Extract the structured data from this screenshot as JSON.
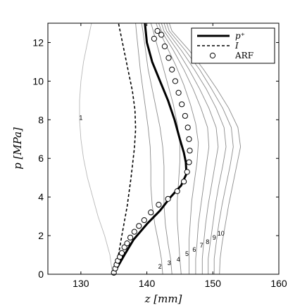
{
  "chart_data": {
    "type": "line",
    "xlabel": "z [mm]",
    "ylabel": "p [MPa]",
    "xlim": [
      125,
      160
    ],
    "ylim": [
      0,
      13
    ],
    "xticks": [
      130,
      140,
      150,
      160
    ],
    "yticks": [
      0,
      2,
      4,
      6,
      8,
      10,
      12
    ],
    "grid": false,
    "legend_position": "top-right",
    "series": [
      {
        "name": "p⁺",
        "style": "solid-thick",
        "color": "#000000",
        "points": [
          [
            135.0,
            0.0
          ],
          [
            135.6,
            0.4
          ],
          [
            136.6,
            1.0
          ],
          [
            138.0,
            1.8
          ],
          [
            140.0,
            2.6
          ],
          [
            142.0,
            3.3
          ],
          [
            143.6,
            4.0
          ],
          [
            145.2,
            4.6
          ],
          [
            146.0,
            5.2
          ],
          [
            145.9,
            5.8
          ],
          [
            145.6,
            6.3
          ],
          [
            145.0,
            7.0
          ],
          [
            144.2,
            8.0
          ],
          [
            143.2,
            9.0
          ],
          [
            142.0,
            10.0
          ],
          [
            140.8,
            11.0
          ],
          [
            140.0,
            12.0
          ],
          [
            139.7,
            13.0
          ]
        ]
      },
      {
        "name": "I",
        "style": "dashed",
        "color": "#000000",
        "points": [
          [
            135.0,
            0.0
          ],
          [
            135.6,
            0.8
          ],
          [
            136.2,
            2.0
          ],
          [
            137.0,
            3.5
          ],
          [
            137.6,
            5.0
          ],
          [
            138.1,
            6.5
          ],
          [
            138.3,
            7.5
          ],
          [
            138.2,
            8.5
          ],
          [
            137.8,
            9.5
          ],
          [
            137.2,
            10.5
          ],
          [
            136.6,
            11.5
          ],
          [
            136.0,
            12.5
          ],
          [
            135.7,
            13.0
          ]
        ]
      },
      {
        "name": "ARF",
        "style": "markers",
        "color": "#000000",
        "points": [
          [
            135.0,
            0.08
          ],
          [
            135.2,
            0.3
          ],
          [
            135.4,
            0.5
          ],
          [
            135.6,
            0.7
          ],
          [
            135.9,
            0.9
          ],
          [
            136.2,
            1.1
          ],
          [
            136.6,
            1.4
          ],
          [
            137.0,
            1.6
          ],
          [
            137.5,
            1.9
          ],
          [
            138.1,
            2.2
          ],
          [
            138.8,
            2.5
          ],
          [
            139.6,
            2.8
          ],
          [
            140.6,
            3.2
          ],
          [
            141.8,
            3.6
          ],
          [
            143.2,
            3.9
          ],
          [
            144.6,
            4.3
          ],
          [
            145.6,
            4.8
          ],
          [
            146.1,
            5.3
          ],
          [
            146.4,
            5.8
          ],
          [
            146.5,
            6.4
          ],
          [
            146.4,
            7.0
          ],
          [
            146.2,
            7.6
          ],
          [
            145.8,
            8.2
          ],
          [
            145.3,
            8.8
          ],
          [
            144.8,
            9.4
          ],
          [
            144.3,
            10.0
          ],
          [
            143.8,
            10.6
          ],
          [
            143.3,
            11.2
          ],
          [
            142.7,
            11.8
          ],
          [
            142.2,
            12.4
          ],
          [
            141.6,
            12.6
          ],
          [
            141.1,
            12.2
          ]
        ]
      }
    ],
    "thin_curves": [
      {
        "label": "1",
        "points": [
          [
            134.8,
            0.0
          ],
          [
            134.4,
            1.0
          ],
          [
            133.6,
            2.0
          ],
          [
            132.6,
            3.0
          ],
          [
            131.8,
            4.0
          ],
          [
            131.0,
            5.0
          ],
          [
            130.4,
            6.0
          ],
          [
            130.0,
            7.0
          ],
          [
            129.8,
            8.0
          ],
          [
            129.8,
            9.0
          ],
          [
            130.0,
            10.0
          ],
          [
            130.4,
            11.0
          ],
          [
            131.0,
            12.0
          ],
          [
            131.6,
            13.0
          ]
        ]
      },
      {
        "label": "2",
        "points": [
          [
            142.4,
            0.0
          ],
          [
            142.2,
            0.8
          ],
          [
            141.8,
            1.6
          ],
          [
            141.2,
            2.6
          ],
          [
            140.8,
            3.6
          ],
          [
            140.6,
            4.6
          ],
          [
            140.6,
            5.6
          ],
          [
            140.5,
            6.6
          ],
          [
            140.2,
            7.6
          ],
          [
            139.8,
            8.6
          ],
          [
            139.4,
            9.6
          ],
          [
            139.0,
            10.6
          ],
          [
            138.7,
            11.6
          ],
          [
            138.4,
            12.6
          ],
          [
            138.3,
            13.0
          ]
        ]
      },
      {
        "label": "3",
        "points": [
          [
            143.8,
            0.0
          ],
          [
            143.6,
            0.8
          ],
          [
            143.2,
            1.6
          ],
          [
            142.8,
            2.6
          ],
          [
            142.6,
            3.6
          ],
          [
            142.6,
            4.6
          ],
          [
            142.6,
            5.6
          ],
          [
            142.4,
            6.6
          ],
          [
            142.0,
            7.6
          ],
          [
            141.4,
            8.6
          ],
          [
            140.8,
            9.6
          ],
          [
            140.2,
            10.6
          ],
          [
            139.8,
            11.6
          ],
          [
            139.4,
            12.6
          ],
          [
            139.2,
            13.0
          ]
        ]
      },
      {
        "label": "4",
        "points": [
          [
            145.2,
            0.0
          ],
          [
            145.0,
            0.8
          ],
          [
            144.8,
            1.8
          ],
          [
            144.6,
            2.8
          ],
          [
            144.6,
            3.8
          ],
          [
            144.8,
            4.8
          ],
          [
            145.0,
            5.8
          ],
          [
            145.0,
            6.8
          ],
          [
            144.6,
            7.8
          ],
          [
            144.0,
            8.8
          ],
          [
            143.2,
            9.8
          ],
          [
            142.4,
            10.8
          ],
          [
            141.6,
            11.8
          ],
          [
            140.8,
            12.8
          ],
          [
            140.6,
            13.0
          ]
        ]
      },
      {
        "label": "5",
        "points": [
          [
            146.4,
            0.0
          ],
          [
            146.4,
            0.8
          ],
          [
            146.4,
            1.8
          ],
          [
            146.6,
            2.8
          ],
          [
            146.8,
            3.8
          ],
          [
            147.2,
            4.8
          ],
          [
            147.6,
            5.8
          ],
          [
            147.8,
            6.8
          ],
          [
            147.4,
            7.8
          ],
          [
            146.6,
            8.8
          ],
          [
            145.6,
            9.8
          ],
          [
            144.4,
            10.8
          ],
          [
            143.0,
            11.8
          ],
          [
            141.6,
            12.8
          ],
          [
            141.4,
            13.0
          ]
        ]
      },
      {
        "label": "6",
        "points": [
          [
            147.4,
            0.0
          ],
          [
            147.4,
            0.8
          ],
          [
            147.6,
            1.6
          ],
          [
            147.8,
            2.6
          ],
          [
            148.2,
            3.6
          ],
          [
            148.6,
            4.6
          ],
          [
            149.0,
            5.6
          ],
          [
            149.4,
            6.6
          ],
          [
            149.2,
            7.6
          ],
          [
            148.2,
            8.6
          ],
          [
            147.0,
            9.6
          ],
          [
            145.6,
            10.6
          ],
          [
            144.0,
            11.6
          ],
          [
            142.2,
            12.6
          ],
          [
            141.8,
            13.0
          ]
        ]
      },
      {
        "label": "7",
        "points": [
          [
            148.4,
            0.0
          ],
          [
            148.4,
            0.8
          ],
          [
            148.6,
            1.6
          ],
          [
            148.9,
            2.6
          ],
          [
            149.3,
            3.6
          ],
          [
            149.8,
            4.6
          ],
          [
            150.3,
            5.6
          ],
          [
            150.8,
            6.6
          ],
          [
            150.5,
            7.6
          ],
          [
            149.4,
            8.6
          ],
          [
            148.0,
            9.6
          ],
          [
            146.4,
            10.6
          ],
          [
            144.6,
            11.6
          ],
          [
            142.6,
            12.6
          ],
          [
            142.2,
            13.0
          ]
        ]
      },
      {
        "label": "8",
        "points": [
          [
            149.3,
            0.0
          ],
          [
            149.3,
            0.8
          ],
          [
            149.6,
            1.6
          ],
          [
            150.0,
            2.6
          ],
          [
            150.4,
            3.6
          ],
          [
            150.9,
            4.6
          ],
          [
            151.5,
            5.6
          ],
          [
            152.0,
            6.6
          ],
          [
            151.7,
            7.6
          ],
          [
            150.5,
            8.6
          ],
          [
            149.0,
            9.6
          ],
          [
            147.2,
            10.6
          ],
          [
            145.2,
            11.6
          ],
          [
            143.0,
            12.6
          ],
          [
            142.6,
            13.0
          ]
        ]
      },
      {
        "label": "9",
        "points": [
          [
            150.2,
            0.0
          ],
          [
            150.2,
            0.8
          ],
          [
            150.5,
            1.6
          ],
          [
            150.9,
            2.6
          ],
          [
            151.4,
            3.6
          ],
          [
            152.0,
            4.6
          ],
          [
            152.6,
            5.6
          ],
          [
            153.1,
            6.6
          ],
          [
            152.8,
            7.6
          ],
          [
            151.5,
            8.6
          ],
          [
            149.8,
            9.6
          ],
          [
            148.0,
            10.6
          ],
          [
            145.8,
            11.6
          ],
          [
            143.4,
            12.6
          ],
          [
            143.0,
            13.0
          ]
        ]
      },
      {
        "label": "10",
        "points": [
          [
            151.0,
            0.0
          ],
          [
            151.1,
            0.8
          ],
          [
            151.4,
            1.6
          ],
          [
            151.9,
            2.6
          ],
          [
            152.4,
            3.6
          ],
          [
            153.0,
            4.6
          ],
          [
            153.6,
            5.6
          ],
          [
            154.2,
            6.6
          ],
          [
            153.8,
            7.6
          ],
          [
            152.4,
            8.6
          ],
          [
            150.6,
            9.6
          ],
          [
            148.6,
            10.6
          ],
          [
            146.4,
            11.6
          ],
          [
            143.8,
            12.6
          ],
          [
            143.4,
            13.0
          ]
        ]
      }
    ]
  }
}
